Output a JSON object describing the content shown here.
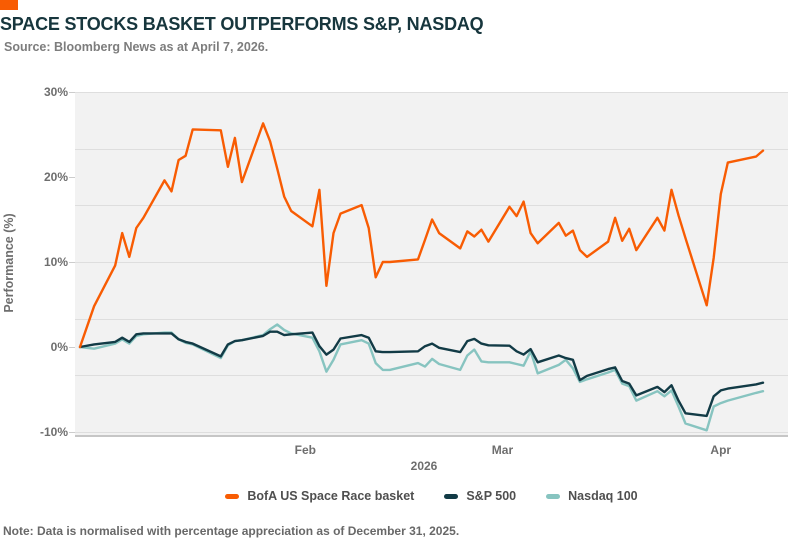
{
  "header": {
    "title": "SPACE STOCKS BASKET OUTPERFORMS S&P, NASDAQ",
    "source": "Source: Bloomberg News as at April 7, 2026."
  },
  "footer": {
    "note": "Note: Data is normalised with percentage appreciation as of December 31, 2025."
  },
  "chart_data": {
    "type": "line",
    "title": "SPACE STOCKS BASKET OUTPERFORMS S&P, NASDAQ",
    "ylabel": "Performance (%)",
    "xlabel": "2026",
    "ylim": [
      -10,
      30
    ],
    "y_ticks": [
      30,
      20,
      10,
      0,
      -10
    ],
    "y_tick_labels": [
      "30%",
      "20%",
      "10%",
      "0%",
      "-10%"
    ],
    "grid_divisions": 6,
    "grid": true,
    "legend_position": "bottom",
    "plot_bg": "#f2f2f2",
    "x_unit": "calendar days since Dec 31, 2025 (trading days only)",
    "xlim": [
      0,
      97
    ],
    "x_ticks": [
      {
        "label": "Feb",
        "day": 32
      },
      {
        "label": "Mar",
        "day": 60
      },
      {
        "label": "Apr",
        "day": 91
      }
    ],
    "days": [
      0,
      2,
      5,
      6,
      7,
      8,
      9,
      12,
      13,
      14,
      15,
      16,
      20,
      21,
      22,
      23,
      26,
      27,
      28,
      29,
      30,
      33,
      34,
      35,
      36,
      37,
      40,
      41,
      42,
      43,
      44,
      48,
      49,
      50,
      51,
      54,
      55,
      56,
      57,
      58,
      61,
      62,
      63,
      64,
      65,
      68,
      69,
      70,
      71,
      72,
      75,
      76,
      77,
      78,
      79,
      82,
      83,
      84,
      85,
      86,
      89,
      90,
      91,
      92,
      96,
      97
    ],
    "series": [
      {
        "name": "BofA US Space Race basket",
        "color": "#F85C03",
        "values": [
          0,
          4.8,
          9.6,
          13.4,
          10.6,
          14.0,
          15.2,
          19.6,
          18.3,
          22.0,
          22.5,
          25.6,
          25.5,
          21.2,
          24.6,
          19.4,
          26.3,
          24.2,
          21.0,
          17.7,
          16.0,
          14.2,
          18.5,
          7.2,
          13.4,
          15.7,
          16.7,
          14.0,
          8.2,
          10.0,
          10.0,
          10.3,
          12.6,
          15.0,
          13.4,
          11.6,
          13.6,
          13.0,
          13.8,
          12.4,
          16.5,
          15.4,
          17.1,
          13.4,
          12.2,
          14.6,
          13.1,
          13.7,
          11.4,
          10.6,
          12.4,
          15.2,
          12.5,
          13.9,
          11.4,
          15.2,
          13.7,
          18.5,
          15.5,
          12.8,
          4.9,
          10.5,
          18.0,
          21.7,
          22.4,
          23.1
        ]
      },
      {
        "name": "S&P 500",
        "color": "#123B46",
        "values": [
          0,
          0.3,
          0.6,
          1.1,
          0.6,
          1.5,
          1.6,
          1.6,
          1.6,
          0.9,
          0.6,
          0.4,
          -1.1,
          0.3,
          0.7,
          0.8,
          1.3,
          1.8,
          1.8,
          1.4,
          1.5,
          1.7,
          0.1,
          -0.9,
          -0.3,
          1.0,
          1.4,
          1.1,
          -0.5,
          -0.6,
          -0.6,
          -0.5,
          0.1,
          0.4,
          -0.1,
          -0.6,
          0.7,
          0.95,
          0.4,
          0.2,
          0.15,
          -0.5,
          -0.9,
          -0.25,
          -1.8,
          -1.0,
          -1.3,
          -1.5,
          -3.9,
          -3.4,
          -2.6,
          -2.4,
          -4.0,
          -4.3,
          -5.7,
          -4.7,
          -5.3,
          -4.5,
          -6.3,
          -7.8,
          -8.1,
          -5.8,
          -5.1,
          -4.9,
          -4.4,
          -4.2
        ]
      },
      {
        "name": "Nasdaq 100",
        "color": "#87C4C0",
        "values": [
          0,
          -0.2,
          0.4,
          0.9,
          0.4,
          1.3,
          1.5,
          1.7,
          1.7,
          0.9,
          0.5,
          0.3,
          -1.3,
          0.2,
          0.7,
          0.8,
          1.4,
          2.1,
          2.65,
          2.0,
          1.6,
          1.1,
          -0.5,
          -2.9,
          -1.5,
          0.3,
          0.8,
          0.4,
          -1.9,
          -2.7,
          -2.7,
          -1.9,
          -2.3,
          -1.4,
          -2.0,
          -2.7,
          -1.0,
          -0.3,
          -1.7,
          -1.8,
          -1.8,
          -2.0,
          -2.2,
          -0.5,
          -3.1,
          -2.1,
          -1.5,
          -2.5,
          -4.1,
          -3.8,
          -3.0,
          -2.7,
          -4.3,
          -4.6,
          -6.3,
          -5.2,
          -5.8,
          -5.1,
          -7.0,
          -9.0,
          -9.8,
          -7.0,
          -6.6,
          -6.3,
          -5.4,
          -5.2
        ]
      }
    ]
  }
}
